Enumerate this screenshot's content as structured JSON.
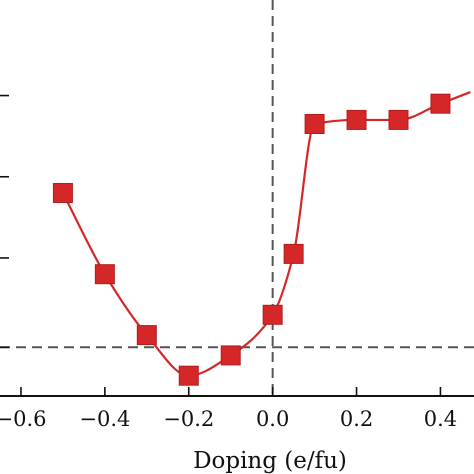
{
  "chart_data": {
    "type": "line",
    "title": "",
    "xlabel": "Doping (e/fu)",
    "ylabel": "",
    "xlim": [
      -0.65,
      0.48
    ],
    "ylim": [
      0,
      10
    ],
    "x_ticks": [
      -0.6,
      -0.4,
      -0.2,
      0.0,
      0.2,
      0.4
    ],
    "x_tick_labels": [
      "−0.6",
      "−0.4",
      "−0.2",
      "0.0",
      "0.2",
      "0.4"
    ],
    "y_ticks": [
      1.2,
      3.4,
      5.4,
      7.4
    ],
    "y_tick_labels": [
      "",
      "",
      "",
      ""
    ],
    "reference_lines": {
      "vertical_x": 0.0,
      "horizontal_y": 1.2
    },
    "grid": false,
    "series": [
      {
        "color": "#d62728",
        "marker": "square",
        "smooth": true,
        "x": [
          -0.5,
          -0.4,
          -0.3,
          -0.2,
          -0.1,
          0.0,
          0.05,
          0.1,
          0.2,
          0.3,
          0.4
        ],
        "y": [
          5.0,
          3.0,
          1.5,
          0.5,
          1.0,
          2.0,
          3.5,
          6.7,
          6.8,
          6.8,
          7.2
        ]
      }
    ]
  }
}
